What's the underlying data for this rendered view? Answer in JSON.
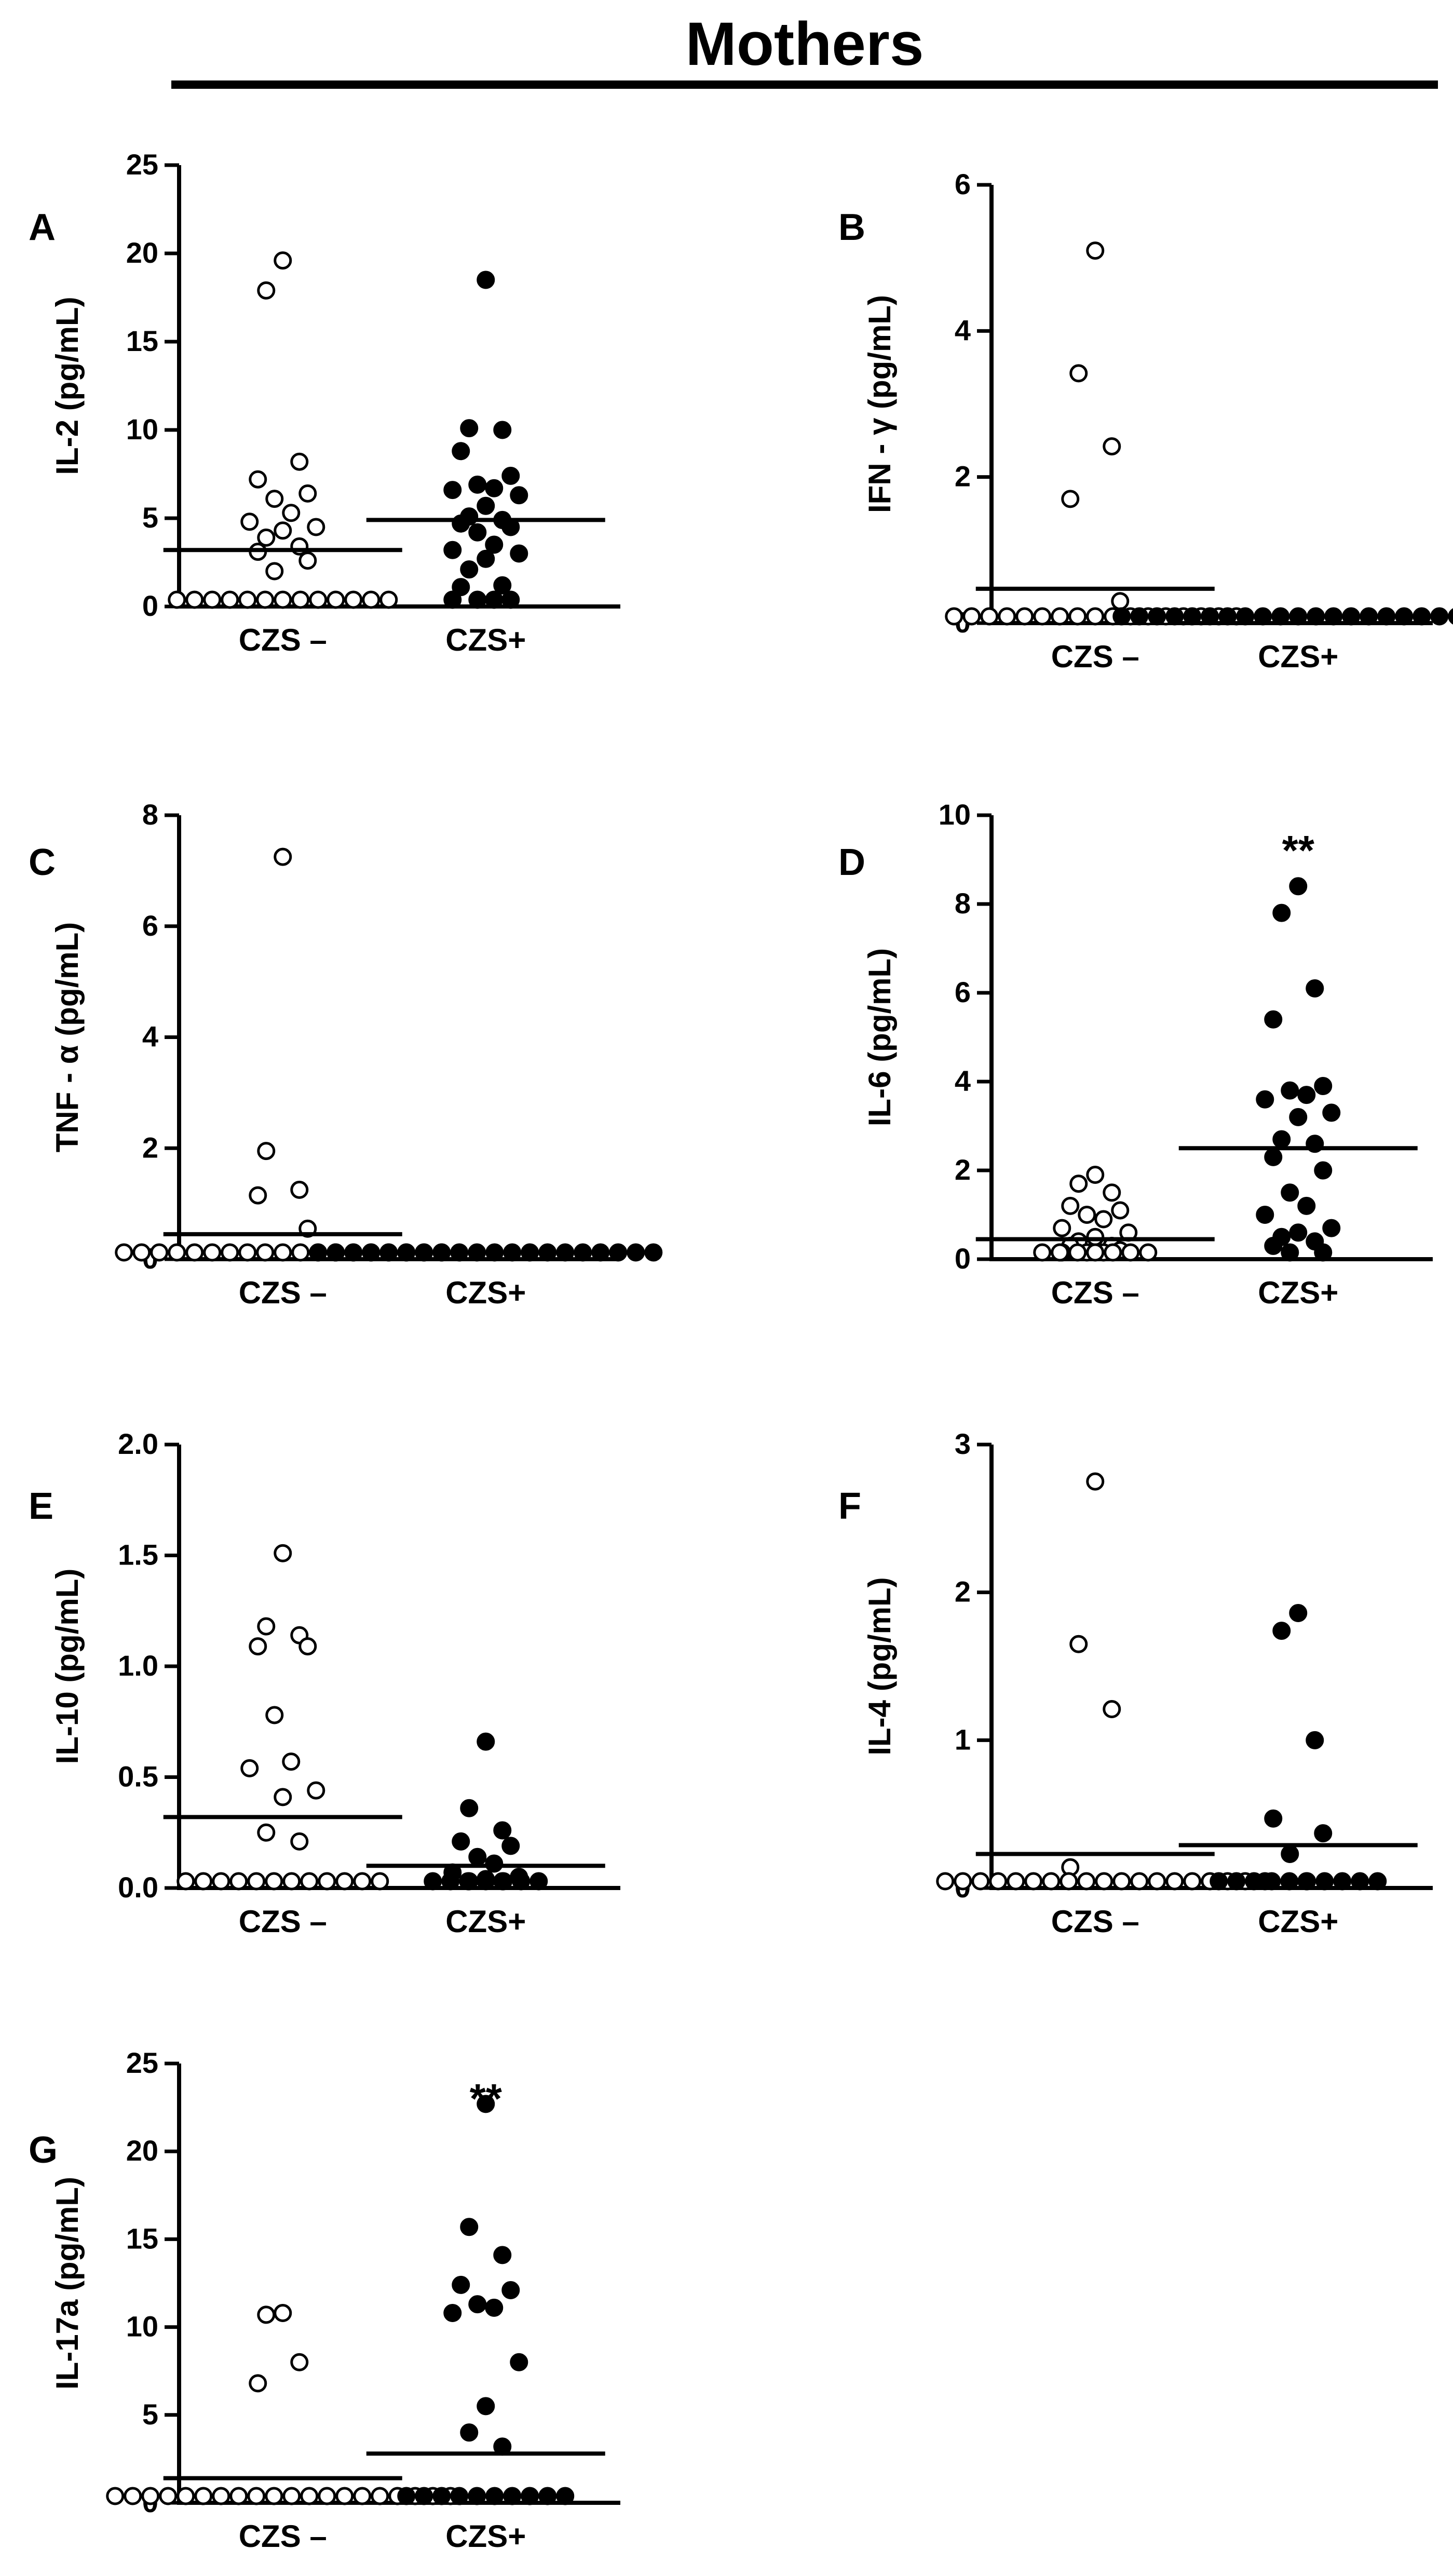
{
  "figure": {
    "title": "Mothers"
  },
  "chart_data": [
    {
      "type": "scatter",
      "panel": "A",
      "ylabel": "IL-2 (pg/mL)",
      "ylim": [
        0,
        25
      ],
      "yticks": [
        "0",
        "5",
        "10",
        "15",
        "20",
        "25"
      ],
      "categories": [
        "CZS –",
        "CZS+"
      ],
      "significance": "",
      "groups": [
        {
          "fill": "open",
          "values": [
            19.6,
            17.9,
            8.2,
            7.2,
            6.4,
            6.1,
            5.3,
            4.8,
            4.5,
            4.3,
            3.9,
            3.4,
            3.1,
            2.6,
            2.0,
            0,
            0,
            0,
            0,
            0,
            0,
            0,
            0,
            0,
            0,
            0,
            0,
            0
          ],
          "median": 3.2
        },
        {
          "fill": "filled",
          "values": [
            18.5,
            10.1,
            10.0,
            8.8,
            7.4,
            6.9,
            6.7,
            6.6,
            6.3,
            5.7,
            5.1,
            4.9,
            4.7,
            4.5,
            4.2,
            3.5,
            3.2,
            3.0,
            2.7,
            2.1,
            1.2,
            1.1,
            0.1,
            0.1,
            0.1,
            0.1
          ],
          "median": 4.9
        }
      ]
    },
    {
      "type": "scatter",
      "panel": "B",
      "ylabel": "IFN - γ (pg/mL)",
      "ylim": [
        0,
        6
      ],
      "yticks": [
        "0",
        "2",
        "4",
        "6"
      ],
      "categories": [
        "CZS –",
        "CZS+"
      ],
      "significance": "",
      "groups": [
        {
          "fill": "open",
          "values": [
            5.1,
            3.42,
            2.42,
            1.7,
            0.3,
            0,
            0,
            0,
            0,
            0,
            0,
            0,
            0,
            0,
            0,
            0,
            0,
            0,
            0,
            0,
            0,
            0
          ],
          "median": 0.47
        },
        {
          "fill": "filled",
          "values": [
            0,
            0,
            0,
            0,
            0,
            0,
            0,
            0,
            0,
            0,
            0,
            0,
            0,
            0,
            0,
            0,
            0,
            0,
            0,
            0,
            0
          ],
          "median": 0
        }
      ]
    },
    {
      "type": "scatter",
      "panel": "C",
      "ylabel": "TNF - α (pg/mL)",
      "ylim": [
        0,
        8
      ],
      "yticks": [
        "0",
        "2",
        "4",
        "6",
        "8"
      ],
      "categories": [
        "CZS –",
        "CZS+"
      ],
      "significance": "",
      "groups": [
        {
          "fill": "open",
          "values": [
            7.25,
            1.95,
            1.25,
            1.15,
            0.55,
            0,
            0,
            0,
            0,
            0,
            0,
            0,
            0,
            0,
            0,
            0,
            0,
            0,
            0,
            0,
            0,
            0,
            0,
            0
          ],
          "median": 0.45
        },
        {
          "fill": "filled",
          "values": [
            0,
            0,
            0,
            0,
            0,
            0,
            0,
            0,
            0,
            0,
            0,
            0,
            0,
            0,
            0,
            0,
            0,
            0,
            0,
            0
          ],
          "median": 0
        }
      ]
    },
    {
      "type": "scatter",
      "panel": "D",
      "ylabel": "IL-6 (pg/mL)",
      "ylim": [
        0,
        10
      ],
      "yticks": [
        "0",
        "2",
        "4",
        "6",
        "8",
        "10"
      ],
      "categories": [
        "CZS –",
        "CZS+"
      ],
      "significance": "**",
      "groups": [
        {
          "fill": "open",
          "values": [
            1.9,
            1.7,
            1.5,
            1.2,
            1.1,
            1.0,
            0.9,
            0.7,
            0.6,
            0.5,
            0.4,
            0.3,
            0.3,
            0.2,
            0.1,
            0.1,
            0.1,
            0,
            0,
            0,
            0,
            0,
            0,
            0
          ],
          "median": 0.45
        },
        {
          "fill": "filled",
          "values": [
            8.4,
            7.8,
            6.1,
            5.4,
            3.9,
            3.8,
            3.7,
            3.6,
            3.3,
            3.2,
            2.7,
            2.6,
            2.3,
            2.0,
            1.5,
            1.2,
            1.0,
            0.7,
            0.6,
            0.5,
            0.4,
            0.3,
            0.1,
            0.1
          ],
          "median": 2.5
        }
      ]
    },
    {
      "type": "scatter",
      "panel": "E",
      "ylabel": "IL-10 (pg/mL)",
      "ylim": [
        0,
        2
      ],
      "yticks": [
        "0.0",
        "0.5",
        "1.0",
        "1.5",
        "2.0"
      ],
      "categories": [
        "CZS –",
        "CZS+"
      ],
      "significance": "",
      "groups": [
        {
          "fill": "open",
          "values": [
            1.51,
            1.18,
            1.14,
            1.09,
            1.09,
            0.78,
            0.57,
            0.54,
            0.44,
            0.41,
            0.25,
            0.21,
            0,
            0,
            0,
            0,
            0,
            0,
            0,
            0,
            0,
            0,
            0,
            0
          ],
          "median": 0.32
        },
        {
          "fill": "filled",
          "values": [
            0.66,
            0.36,
            0.26,
            0.21,
            0.19,
            0.14,
            0.11,
            0.07,
            0.05,
            0.04,
            0.03,
            0.02,
            0,
            0,
            0,
            0,
            0,
            0,
            0
          ],
          "median": 0.1
        }
      ]
    },
    {
      "type": "scatter",
      "panel": "F",
      "ylabel": "IL-4 (pg/mL)",
      "ylim": [
        0,
        3
      ],
      "yticks": [
        "0",
        "1",
        "2",
        "3"
      ],
      "categories": [
        "CZS –",
        "CZS+"
      ],
      "significance": "",
      "groups": [
        {
          "fill": "open",
          "values": [
            2.75,
            1.65,
            1.21,
            0.14,
            0,
            0,
            0,
            0,
            0,
            0,
            0,
            0,
            0,
            0,
            0,
            0,
            0,
            0,
            0,
            0,
            0,
            0
          ],
          "median": 0.23
        },
        {
          "fill": "filled",
          "values": [
            1.86,
            1.74,
            1.0,
            0.47,
            0.37,
            0.23,
            0.01,
            0.01,
            0,
            0,
            0,
            0,
            0,
            0,
            0,
            0,
            0,
            0
          ],
          "median": 0.29
        }
      ]
    },
    {
      "type": "scatter",
      "panel": "G",
      "ylabel": "IL-17a (pg/mL)",
      "ylim": [
        0,
        25
      ],
      "yticks": [
        "0",
        "5",
        "10",
        "15",
        "20",
        "25"
      ],
      "categories": [
        "CZS –",
        "CZS+"
      ],
      "significance": "**",
      "groups": [
        {
          "fill": "open",
          "values": [
            10.8,
            10.7,
            8.0,
            6.8,
            0,
            0,
            0,
            0,
            0,
            0,
            0,
            0,
            0,
            0,
            0,
            0,
            0,
            0,
            0,
            0,
            0,
            0,
            0,
            0
          ],
          "median": 1.4
        },
        {
          "fill": "filled",
          "values": [
            22.7,
            15.7,
            14.1,
            12.4,
            12.1,
            11.3,
            11.1,
            10.8,
            8.0,
            5.5,
            4.0,
            3.2,
            0,
            0,
            0,
            0,
            0,
            0,
            0,
            0,
            0,
            0
          ],
          "median": 2.8
        }
      ]
    }
  ]
}
